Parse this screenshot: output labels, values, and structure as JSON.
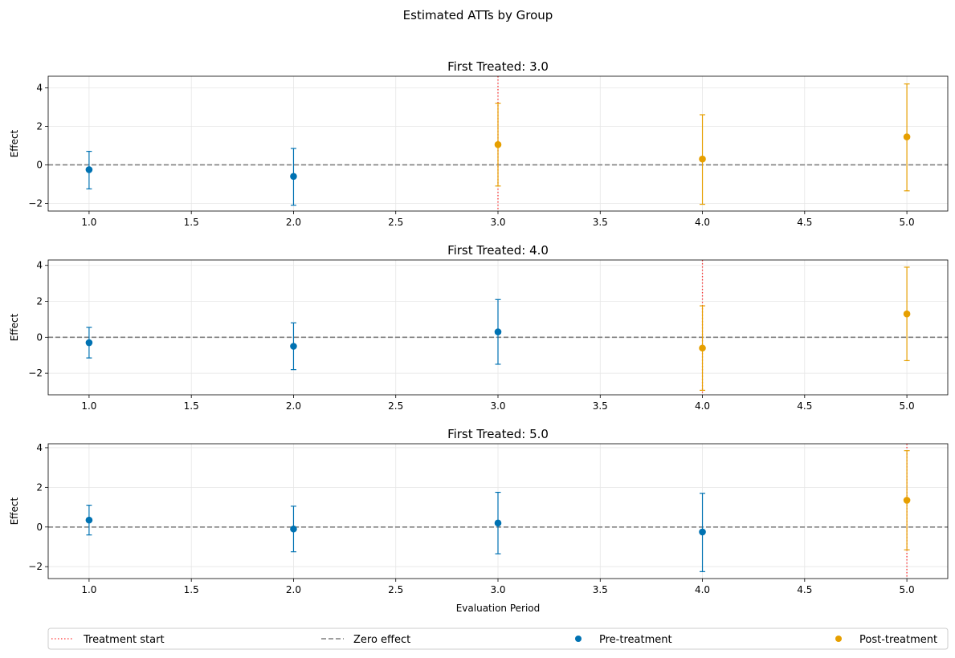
{
  "figure": {
    "suptitle": "Estimated ATTs by Group"
  },
  "colors": {
    "pre": "#0072b2",
    "post": "#e69f00",
    "treatment_line": "#ff0000",
    "zero_line": "#7f7f7f",
    "grid": "#e6e6e6"
  },
  "legend": {
    "position": "bottom",
    "items": [
      {
        "label": "Treatment start",
        "kind": "dotted-line",
        "color_key": "treatment_line"
      },
      {
        "label": "Zero effect",
        "kind": "dashed-line",
        "color_key": "zero_line"
      },
      {
        "label": "Pre-treatment",
        "kind": "marker",
        "color_key": "pre"
      },
      {
        "label": "Post-treatment",
        "kind": "marker",
        "color_key": "post"
      }
    ]
  },
  "chart_data": [
    {
      "type": "scatter",
      "title": "First Treated: 3.0",
      "xlabel": "",
      "ylabel": "Effect",
      "xlim": [
        0.8,
        5.2
      ],
      "ylim": [
        -2.4,
        4.6
      ],
      "xticks": [
        1.0,
        1.5,
        2.0,
        2.5,
        3.0,
        3.5,
        4.0,
        4.5,
        5.0
      ],
      "yticks": [
        -2,
        0,
        2,
        4
      ],
      "grid": true,
      "treatment_start": 3.0,
      "points": [
        {
          "x": 1.0,
          "y": -0.25,
          "lo": -1.25,
          "hi": 0.7,
          "phase": "pre"
        },
        {
          "x": 2.0,
          "y": -0.6,
          "lo": -2.1,
          "hi": 0.85,
          "phase": "pre"
        },
        {
          "x": 3.0,
          "y": 1.05,
          "lo": -1.1,
          "hi": 3.2,
          "phase": "post"
        },
        {
          "x": 4.0,
          "y": 0.3,
          "lo": -2.05,
          "hi": 2.6,
          "phase": "post"
        },
        {
          "x": 5.0,
          "y": 1.45,
          "lo": -1.35,
          "hi": 4.2,
          "phase": "post"
        }
      ]
    },
    {
      "type": "scatter",
      "title": "First Treated: 4.0",
      "xlabel": "",
      "ylabel": "Effect",
      "xlim": [
        0.8,
        5.2
      ],
      "ylim": [
        -3.2,
        4.3
      ],
      "xticks": [
        1.0,
        1.5,
        2.0,
        2.5,
        3.0,
        3.5,
        4.0,
        4.5,
        5.0
      ],
      "yticks": [
        -2,
        0,
        2,
        4
      ],
      "grid": true,
      "treatment_start": 4.0,
      "points": [
        {
          "x": 1.0,
          "y": -0.3,
          "lo": -1.15,
          "hi": 0.55,
          "phase": "pre"
        },
        {
          "x": 2.0,
          "y": -0.5,
          "lo": -1.8,
          "hi": 0.8,
          "phase": "pre"
        },
        {
          "x": 3.0,
          "y": 0.3,
          "lo": -1.5,
          "hi": 2.1,
          "phase": "pre"
        },
        {
          "x": 4.0,
          "y": -0.6,
          "lo": -2.95,
          "hi": 1.75,
          "phase": "post"
        },
        {
          "x": 5.0,
          "y": 1.3,
          "lo": -1.3,
          "hi": 3.9,
          "phase": "post"
        }
      ]
    },
    {
      "type": "scatter",
      "title": "First Treated: 5.0",
      "xlabel": "Evaluation Period",
      "ylabel": "Effect",
      "xlim": [
        0.8,
        5.2
      ],
      "ylim": [
        -2.6,
        4.2
      ],
      "xticks": [
        1.0,
        1.5,
        2.0,
        2.5,
        3.0,
        3.5,
        4.0,
        4.5,
        5.0
      ],
      "yticks": [
        -2,
        0,
        2,
        4
      ],
      "grid": true,
      "treatment_start": 5.0,
      "points": [
        {
          "x": 1.0,
          "y": 0.35,
          "lo": -0.4,
          "hi": 1.1,
          "phase": "pre"
        },
        {
          "x": 2.0,
          "y": -0.1,
          "lo": -1.25,
          "hi": 1.05,
          "phase": "pre"
        },
        {
          "x": 3.0,
          "y": 0.2,
          "lo": -1.35,
          "hi": 1.75,
          "phase": "pre"
        },
        {
          "x": 4.0,
          "y": -0.25,
          "lo": -2.25,
          "hi": 1.7,
          "phase": "pre"
        },
        {
          "x": 5.0,
          "y": 1.35,
          "lo": -1.15,
          "hi": 3.85,
          "phase": "post"
        }
      ]
    }
  ]
}
